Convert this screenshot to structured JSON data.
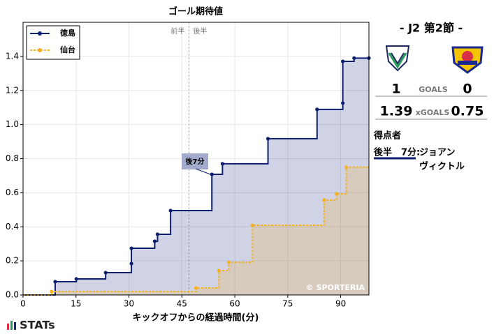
{
  "chart_data": {
    "type": "step",
    "title": "ゴール期待値",
    "x_label": "キックオフからの経過時間(分)",
    "series": [
      {
        "name": "徳島",
        "color": "#0d1f6e",
        "fill": "rgba(40,55,140,0.22)",
        "dash": false,
        "x": [
          9.1,
          15.1,
          23.4,
          30.7,
          30.7,
          37.3,
          38.1,
          41.8,
          53.5,
          56.5,
          69.4,
          83.3,
          90.6,
          90.6,
          93.8,
          98
        ],
        "values": [
          0.078,
          0.094,
          0.131,
          0.184,
          0.274,
          0.315,
          0.356,
          0.495,
          0.708,
          0.77,
          0.917,
          1.089,
          1.126,
          1.371,
          1.39,
          1.39
        ]
      },
      {
        "name": "仙台",
        "color": "#f5b120",
        "fill": "rgba(245,177,32,0.2)",
        "dash": true,
        "x": [
          8.1,
          49.0,
          55.5,
          58.3,
          65.0,
          85.3,
          88.8,
          91.6
        ],
        "values": [
          0.02,
          0.041,
          0.143,
          0.192,
          0.409,
          0.557,
          0.594,
          0.75
        ]
      }
    ],
    "xlim": [
      0,
      98
    ],
    "ylim": [
      0,
      1.6
    ],
    "xticks": [
      0,
      15,
      30,
      45,
      60,
      75,
      90
    ],
    "yticks": [
      {
        "value": 0,
        "label": "0.0"
      },
      0.2,
      0.4,
      0.6,
      0.8,
      {
        "value": 1,
        "label": "1.0"
      },
      1.2,
      1.4
    ],
    "grid": true,
    "legend": "upper left",
    "halftime": 47,
    "first_half_label": "前半",
    "second_half_label": "後半",
    "annotation": "後7分",
    "credit": "© SPORTERIA"
  },
  "match": {
    "round": "- J2 第2節 -",
    "home_goals": 1,
    "away_goals": 0,
    "goals_label": "GOALS",
    "home_xg": 1.39,
    "away_xg": 0.75,
    "xg_label": "xGOALS",
    "scorers_title": "得点者",
    "scorer_time": "後半　7分:",
    "scorer_name": [
      "ジョアン",
      "ヴィクトル"
    ]
  },
  "brand": "STATs"
}
